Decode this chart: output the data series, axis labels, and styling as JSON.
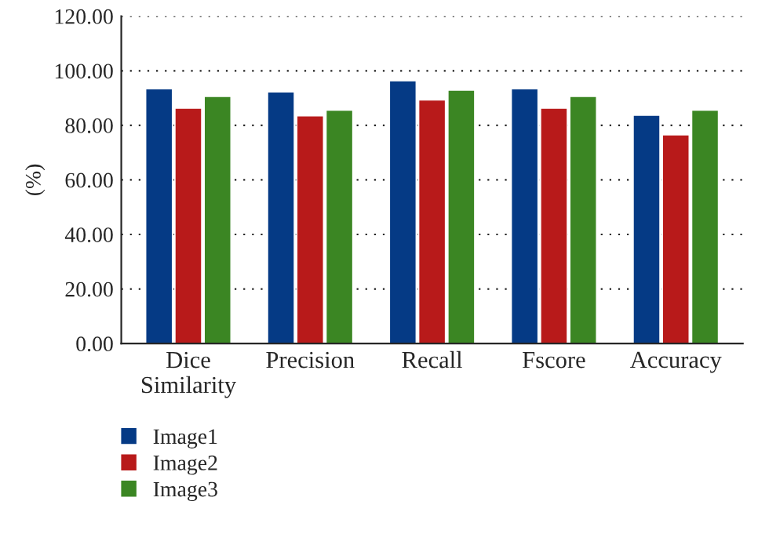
{
  "chart_data": {
    "type": "bar",
    "ylabel": "(%)",
    "categories": [
      "Dice\nSimilarity",
      "Precision",
      "Recall",
      "Fscore",
      "Accuracy"
    ],
    "series": [
      {
        "name": "Image1",
        "color": "#053a85",
        "values": [
          93.4,
          92.3,
          96.4,
          93.4,
          83.7
        ]
      },
      {
        "name": "Image2",
        "color": "#b81a1a",
        "values": [
          86.3,
          83.5,
          89.3,
          86.3,
          76.5
        ]
      },
      {
        "name": "Image3",
        "color": "#3b8623",
        "values": [
          90.6,
          85.6,
          92.9,
          90.6,
          85.6
        ]
      }
    ],
    "ylim": [
      0,
      120
    ],
    "yticks": [
      {
        "value": 0,
        "label": "0.00"
      },
      {
        "value": 20,
        "label": "20.00"
      },
      {
        "value": 40,
        "label": "40.00"
      },
      {
        "value": 60,
        "label": "60.00"
      },
      {
        "value": 80,
        "label": "80.00"
      },
      {
        "value": 100,
        "label": "100.00"
      },
      {
        "value": 120,
        "label": "120.00"
      }
    ],
    "grid": "y",
    "legend": "bottom left"
  }
}
